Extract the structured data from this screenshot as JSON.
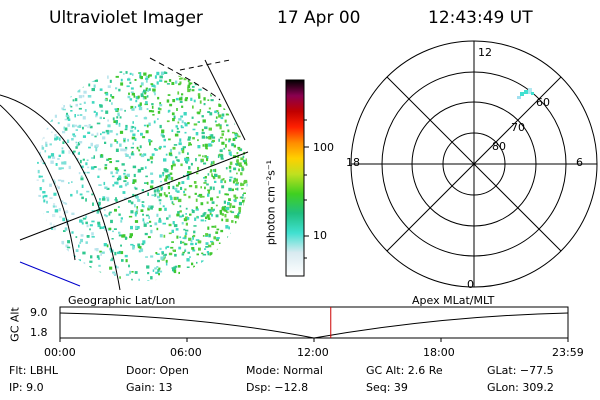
{
  "header": {
    "instrument": "Ultraviolet Imager",
    "date": "17 Apr 00",
    "time": "12:43:49 UT"
  },
  "colorbar": {
    "unit_label": "photon cm⁻²s⁻¹",
    "ticks": [
      "100",
      "10"
    ]
  },
  "polar_plot": {
    "mlt_labels": [
      "12",
      "18",
      "6",
      "0"
    ],
    "lat_labels": [
      "60",
      "70",
      "80"
    ]
  },
  "timeline": {
    "left_title": "Geographic Lat/Lon",
    "right_title": "Apex MLat/MLT",
    "y_axis_label": "GC Alt",
    "y_ticks": [
      "9.0",
      "1.8"
    ],
    "x_ticks": [
      "00:00",
      "06:00",
      "12:00",
      "18:00",
      "23:59"
    ],
    "current_time_fraction": 0.533
  },
  "info": {
    "flt": "Flt: LBHL",
    "ip": "IP:  9.0",
    "door": "Door: Open",
    "gain": "Gain: 13",
    "mode": "Mode: Normal",
    "dsp": "Dsp:  −12.8",
    "gc_alt": "GC Alt: 2.6 Re",
    "seq": "Seq: 39",
    "glat": "GLat: −77.5",
    "glon": "GLon: 309.2"
  },
  "colors": {
    "marker": "#cc0000",
    "blue_line": "#0000cc"
  }
}
